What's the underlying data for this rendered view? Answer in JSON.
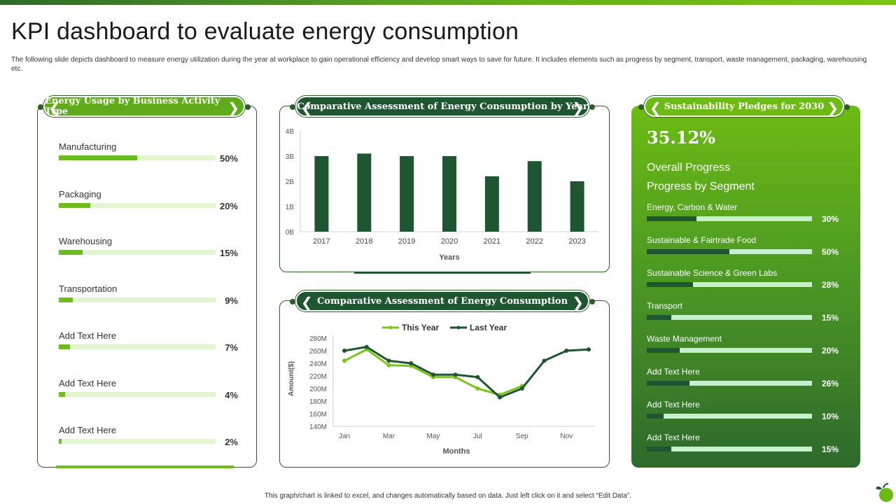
{
  "header": {
    "title": "KPI dashboard to evaluate energy consumption",
    "subtitle": "The following slide depicts dashboard to measure energy utilization during the year at workplace to gain operational efficiency and develop smart ways to save for future. It includes elements such as progress by segment, transport, waste management, packaging, warehousing etc."
  },
  "left_panel": {
    "title": "Energy Usage by Business Activity Type",
    "items": [
      {
        "label": "Manufacturing",
        "value": 50,
        "pct": "50%"
      },
      {
        "label": "Packaging",
        "value": 20,
        "pct": "20%"
      },
      {
        "label": "Warehousing",
        "value": 15,
        "pct": "15%"
      },
      {
        "label": "Transportation",
        "value": 9,
        "pct": "9%"
      },
      {
        "label": "Add Text Here",
        "value": 7,
        "pct": "7%"
      },
      {
        "label": "Add Text Here",
        "value": 4,
        "pct": "4%"
      },
      {
        "label": "Add Text Here",
        "value": 2,
        "pct": "2%"
      }
    ]
  },
  "bar_panel": {
    "title": "Comparative Assessment of Energy Consumption by Year"
  },
  "line_panel": {
    "title": "Comparative Assessment of Energy Consumption"
  },
  "right_panel": {
    "title": "Sustainability Pledges for 2030",
    "overall_value": "35.12%",
    "overall_label": "Overall Progress",
    "segment_heading": "Progress by Segment",
    "segments": [
      {
        "label": "Energy, Carbon & Water",
        "value": 30,
        "pct": "30%"
      },
      {
        "label": "Sustainable & Fairtrade Food",
        "value": 50,
        "pct": "50%"
      },
      {
        "label": "Sustainable Science & Green Labs",
        "value": 28,
        "pct": "28%"
      },
      {
        "label": "Transport",
        "value": 15,
        "pct": "15%"
      },
      {
        "label": "Waste Management",
        "value": 20,
        "pct": "20%"
      },
      {
        "label": "Add Text Here",
        "value": 26,
        "pct": "26%"
      },
      {
        "label": "Add Text Here",
        "value": 10,
        "pct": "10%"
      },
      {
        "label": "Add Text Here",
        "value": 15,
        "pct": "15%"
      }
    ]
  },
  "footer": {
    "note": "This graph/chart is linked to excel, and changes automatically based on data. Just left click on it and select “Edit Data”."
  },
  "colors": {
    "dark_green": "#1e5631",
    "light_green": "#6cbb1f",
    "track_light": "#e2f5cf",
    "track_right": "#c5f0cb"
  },
  "chart_data": [
    {
      "type": "bar",
      "title": "Comparative Assessment of Energy Consumption by Year",
      "categories": [
        "2017",
        "2018",
        "2019",
        "2020",
        "2021",
        "2022",
        "2023"
      ],
      "values": [
        3.0,
        3.1,
        3.0,
        3.0,
        2.2,
        2.8,
        2.0
      ],
      "unit": "B",
      "xlabel": "Years",
      "ylabel": "",
      "ylim": [
        0,
        4
      ],
      "yticks": [
        "0B",
        "1B",
        "2B",
        "3B",
        "4B"
      ],
      "color": "#1e5631"
    },
    {
      "type": "line",
      "title": "Comparative Assessment of Energy Consumption",
      "x": [
        "Jan",
        "Feb",
        "Mar",
        "Apr",
        "May",
        "Jun",
        "Jul",
        "Aug",
        "Sep",
        "Oct",
        "Nov",
        "Dec"
      ],
      "xticks": [
        "Jan",
        "Mar",
        "May",
        "Jul",
        "Sep",
        "Nov"
      ],
      "series": [
        {
          "name": "This Year",
          "color": "#7cc418",
          "values": [
            244,
            262,
            237,
            236,
            218,
            218,
            200,
            190,
            204,
            null,
            null,
            null
          ]
        },
        {
          "name": "Last Year",
          "color": "#1e5631",
          "values": [
            260,
            266,
            244,
            240,
            222,
            222,
            218,
            186,
            200,
            244,
            260,
            262
          ]
        }
      ],
      "xlabel": "Months",
      "ylabel": "Amount($)",
      "ylim": [
        140,
        280
      ],
      "yticks": [
        "140M",
        "160M",
        "180M",
        "200M",
        "220M",
        "240M",
        "260M",
        "280M"
      ],
      "legend": "top-center"
    }
  ]
}
